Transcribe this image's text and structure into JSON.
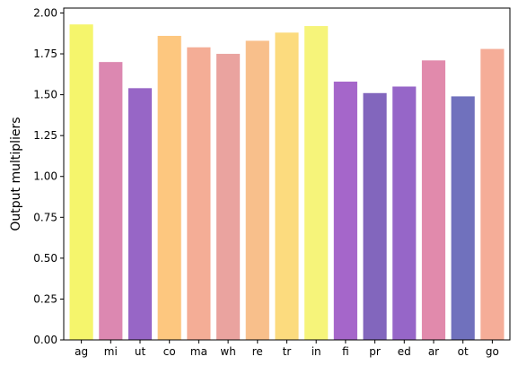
{
  "chart_data": {
    "type": "bar",
    "title": "",
    "xlabel": "",
    "ylabel": "Output multipliers",
    "ylim": [
      0,
      2.03
    ],
    "yticks": [
      0.0,
      0.25,
      0.5,
      0.75,
      1.0,
      1.25,
      1.5,
      1.75,
      2.0
    ],
    "ytick_labels": [
      "0.00",
      "0.25",
      "0.50",
      "0.75",
      "1.00",
      "1.25",
      "1.50",
      "1.75",
      "2.00"
    ],
    "grid": false,
    "legend": "none",
    "categories": [
      "ag",
      "mi",
      "ut",
      "co",
      "ma",
      "wh",
      "re",
      "tr",
      "in",
      "fi",
      "pr",
      "ed",
      "ar",
      "ot",
      "go"
    ],
    "values": [
      1.93,
      1.7,
      1.54,
      1.86,
      1.79,
      1.75,
      1.83,
      1.88,
      1.92,
      1.58,
      1.51,
      1.55,
      1.71,
      1.49,
      1.78
    ],
    "colors": [
      "#f5f56c",
      "#dc88b1",
      "#9766c6",
      "#fdc77f",
      "#f4ad96",
      "#eaa39f",
      "#f8bf8b",
      "#fcdb7e",
      "#f6f47a",
      "#a566ca",
      "#8266bd",
      "#9666c8",
      "#e18aac",
      "#7071bd",
      "#f5ad98"
    ]
  }
}
